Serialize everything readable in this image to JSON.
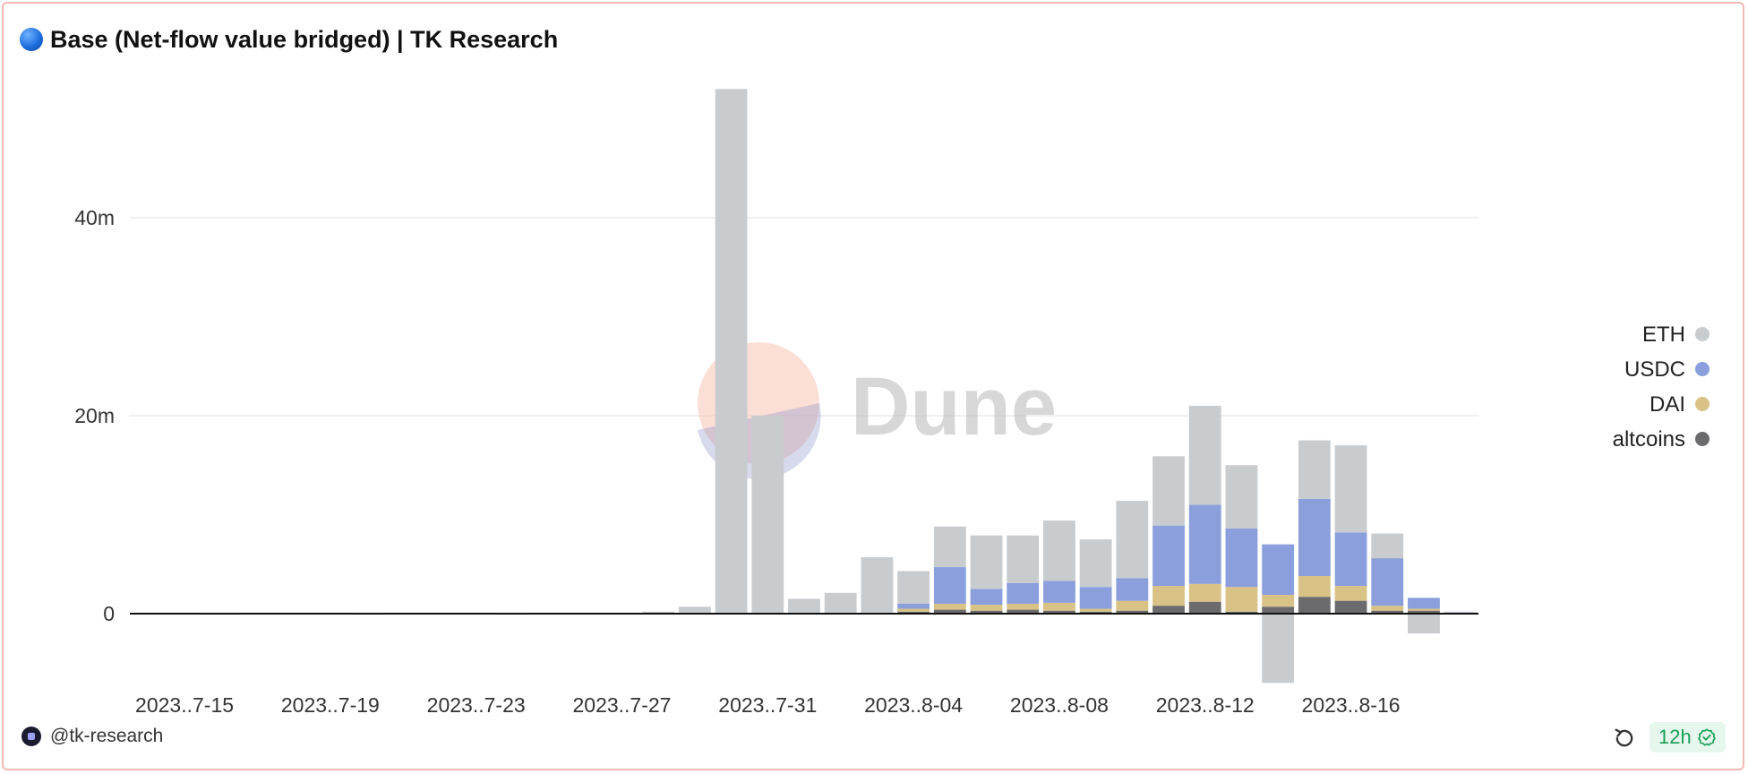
{
  "header": {
    "title": "Base (Net-flow value bridged) | TK Research",
    "icon": "blue-circle-icon"
  },
  "footer": {
    "author": "@tk-research",
    "refresh_icon": "refresh-icon",
    "age": "12h",
    "status_icon": "check-circle-icon"
  },
  "watermark": {
    "text": "Dune"
  },
  "chart_data": {
    "type": "bar",
    "stacked": true,
    "x": [
      "2023-07-14",
      "2023-07-15",
      "2023-07-16",
      "2023-07-17",
      "2023-07-18",
      "2023-07-19",
      "2023-07-20",
      "2023-07-21",
      "2023-07-22",
      "2023-07-23",
      "2023-07-24",
      "2023-07-25",
      "2023-07-26",
      "2023-07-27",
      "2023-07-28",
      "2023-07-29",
      "2023-07-30",
      "2023-07-31",
      "2023-08-01",
      "2023-08-02",
      "2023-08-03",
      "2023-08-04",
      "2023-08-05",
      "2023-08-06",
      "2023-08-07",
      "2023-08-08",
      "2023-08-09",
      "2023-08-10",
      "2023-08-11",
      "2023-08-12",
      "2023-08-13",
      "2023-08-14",
      "2023-08-15",
      "2023-08-16",
      "2023-08-17",
      "2023-08-18",
      "2023-08-19"
    ],
    "x_tick_labels": [
      "2023..7-15",
      "2023..7-19",
      "2023..7-23",
      "2023..7-27",
      "2023..7-31",
      "2023..8-04",
      "2023..8-08",
      "2023..8-12",
      "2023..8-16"
    ],
    "x_tick_dates": [
      "2023-07-15",
      "2023-07-19",
      "2023-07-23",
      "2023-07-27",
      "2023-07-31",
      "2023-08-04",
      "2023-08-08",
      "2023-08-12",
      "2023-08-16"
    ],
    "y_ticks": [
      0,
      20000000,
      40000000
    ],
    "y_tick_labels": [
      "0",
      "20m",
      "40m"
    ],
    "ylim": [
      -7000000,
      53500000
    ],
    "grid": true,
    "legend_position": "right",
    "series": [
      {
        "name": "altcoins",
        "color": "#6b6b6e",
        "values": [
          0,
          0,
          0,
          0,
          0,
          0,
          0,
          0,
          0,
          0,
          0,
          0,
          0,
          0,
          0,
          0,
          0,
          0,
          0,
          0,
          0,
          200000,
          400000,
          300000,
          400000,
          300000,
          200000,
          300000,
          800000,
          1200000,
          200000,
          700000,
          1700000,
          1300000,
          300000,
          300000,
          0
        ]
      },
      {
        "name": "DAI",
        "color": "#d9c286",
        "values": [
          0,
          0,
          0,
          0,
          0,
          0,
          0,
          0,
          0,
          0,
          0,
          0,
          0,
          0,
          0,
          0,
          0,
          0,
          0,
          0,
          0,
          300000,
          600000,
          600000,
          600000,
          800000,
          300000,
          1000000,
          2000000,
          1800000,
          2500000,
          1200000,
          2100000,
          1500000,
          500000,
          200000,
          0
        ]
      },
      {
        "name": "USDC",
        "color": "#8a9fdc",
        "values": [
          0,
          0,
          0,
          0,
          0,
          0,
          0,
          0,
          0,
          0,
          0,
          0,
          0,
          0,
          0,
          0,
          0,
          0,
          0,
          0,
          0,
          500000,
          3700000,
          1600000,
          2100000,
          2200000,
          2200000,
          2300000,
          6100000,
          8000000,
          5900000,
          5100000,
          7800000,
          5400000,
          4800000,
          1100000,
          100000
        ]
      },
      {
        "name": "ETH",
        "color": "#c8cccf",
        "values": [
          100000,
          100000,
          50000,
          100000,
          100000,
          100000,
          50000,
          100000,
          100000,
          100000,
          50000,
          100000,
          100000,
          100000,
          200000,
          700000,
          53000000,
          20000000,
          1500000,
          2100000,
          5700000,
          3300000,
          4100000,
          5400000,
          4800000,
          6100000,
          4800000,
          7800000,
          7000000,
          10000000,
          6400000,
          -7000000,
          5900000,
          8800000,
          2500000,
          -2000000,
          100000
        ]
      }
    ],
    "legend_order": [
      "ETH",
      "USDC",
      "DAI",
      "altcoins"
    ]
  }
}
